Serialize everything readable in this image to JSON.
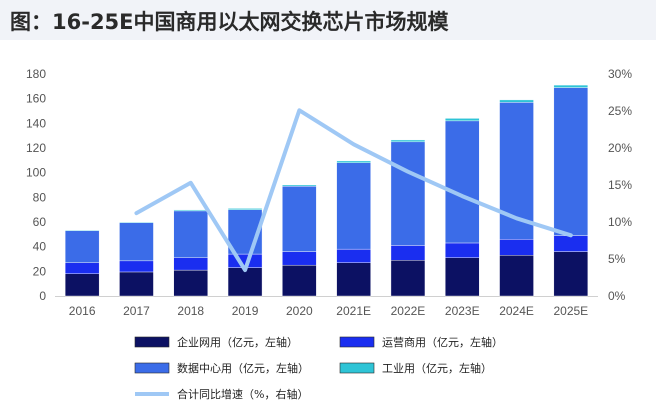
{
  "title": "图：16-25E中国商用以太网交换芯片市场规模",
  "chart_data": {
    "type": "bar",
    "stacked": true,
    "categories": [
      "2016",
      "2017",
      "2018",
      "2019",
      "2020",
      "2021E",
      "2022E",
      "2023E",
      "2024E",
      "2025E"
    ],
    "left_axis": {
      "min": 0,
      "max": 180,
      "ticks": [
        "0",
        "20",
        "40",
        "60",
        "80",
        "100",
        "120",
        "140",
        "160",
        "180"
      ]
    },
    "right_axis": {
      "min": 0,
      "max": 30,
      "ticks": [
        "0%",
        "5%",
        "10%",
        "15%",
        "20%",
        "25%",
        "30%"
      ]
    },
    "series": [
      {
        "name": "企业网用（亿元，左轴）",
        "type": "bar",
        "axis": "left",
        "color": "#0c1163",
        "values": [
          18,
          19.5,
          21,
          23,
          25,
          27,
          29,
          31,
          33,
          36
        ]
      },
      {
        "name": "运营商用（亿元，左轴）",
        "type": "bar",
        "axis": "left",
        "color": "#1a2ef0",
        "values": [
          9,
          9,
          10,
          11,
          11,
          11,
          12,
          12,
          13,
          13
        ]
      },
      {
        "name": "数据中心用（亿元，左轴）",
        "type": "bar",
        "axis": "left",
        "color": "#3b6ce8",
        "values": [
          26,
          31,
          38,
          36,
          53,
          70,
          84,
          99,
          111,
          120
        ]
      },
      {
        "name": "工业用（亿元，左轴）",
        "type": "bar",
        "axis": "left",
        "color": "#2ec4d6",
        "values": [
          0.5,
          0.5,
          0.8,
          1,
          1,
          1.5,
          1.5,
          2,
          2,
          2
        ]
      },
      {
        "name": "合计同比增速（%，右轴）",
        "type": "line",
        "axis": "right",
        "color": "#9fc8f5",
        "values": [
          null,
          11.2,
          15.3,
          3.5,
          25.1,
          20.5,
          16.8,
          13.5,
          10.5,
          8.2
        ]
      }
    ],
    "legend_position": "bottom",
    "grid": false
  }
}
